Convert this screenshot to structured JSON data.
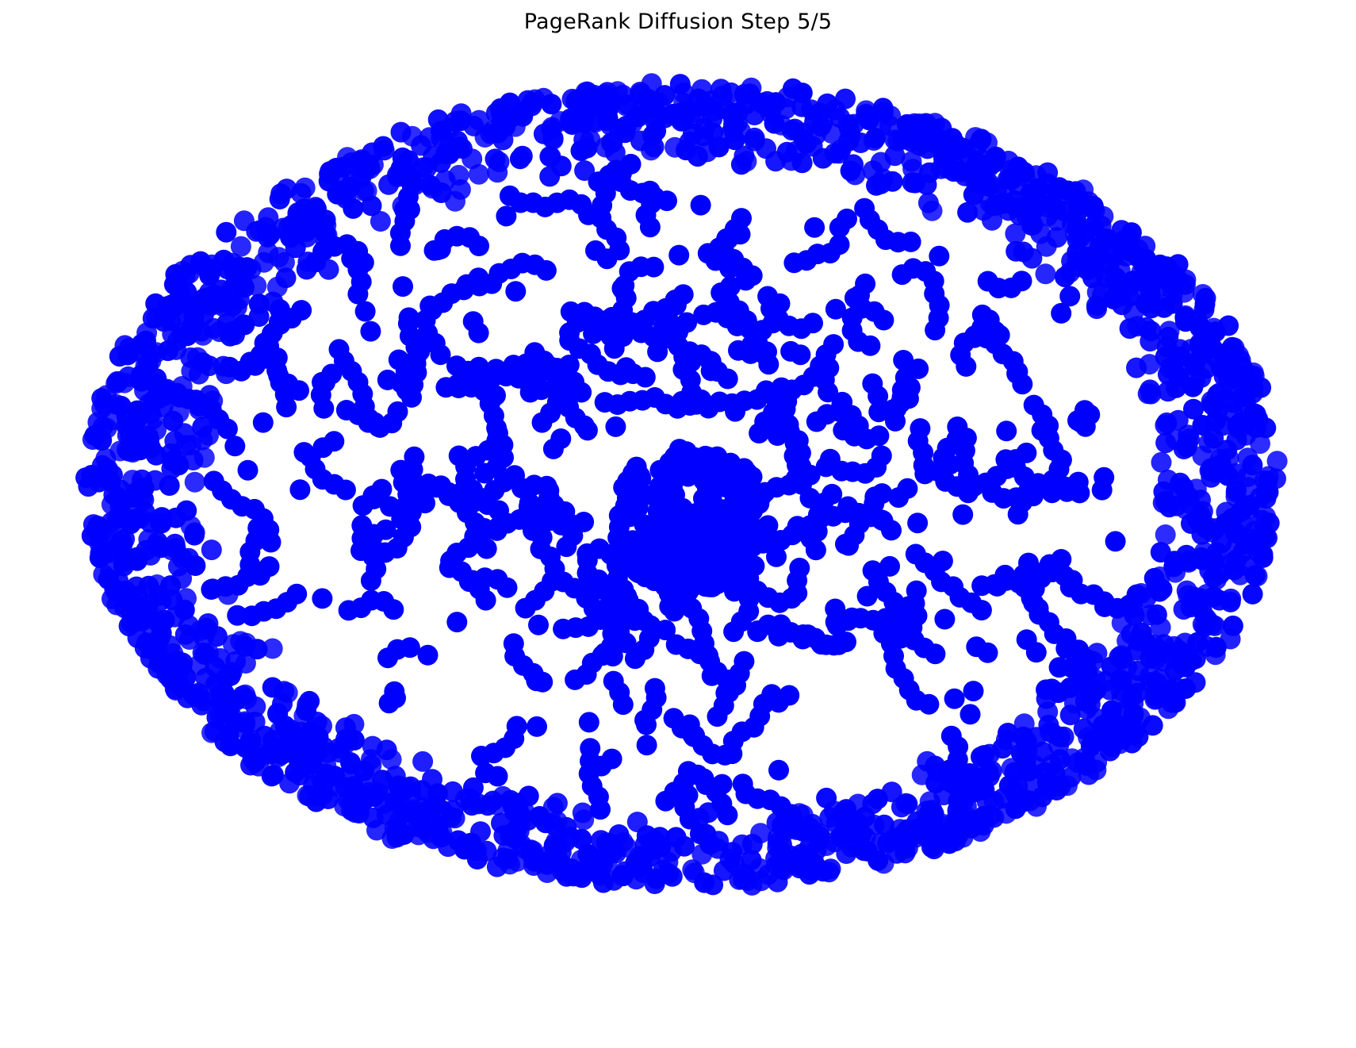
{
  "title": "PageRank Diffusion Step 5/5",
  "chart_data": {
    "type": "scatter",
    "title": "PageRank Diffusion Step 5/5",
    "xlabel": "",
    "ylabel": "",
    "grid": false,
    "axes_visible": false,
    "legend": "none",
    "node_color": "#0000ff",
    "step": 5,
    "total_steps": 5
  }
}
